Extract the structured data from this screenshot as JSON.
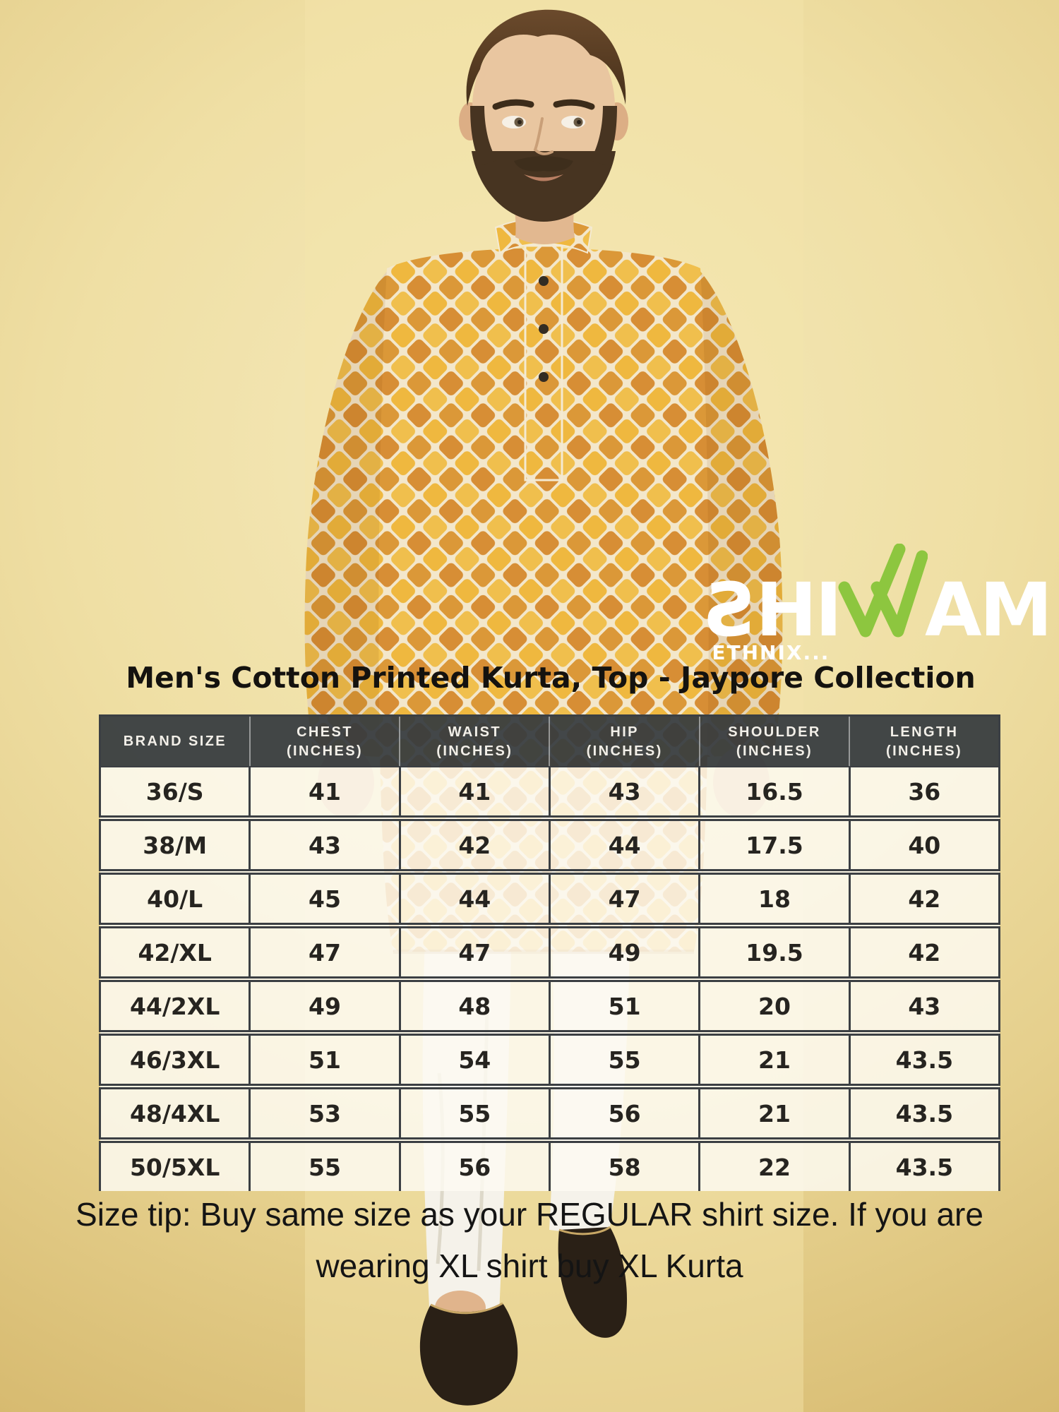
{
  "colors": {
    "bg_center": "#f5e9bc",
    "bg_edge": "#d2b366",
    "accent_green": "#8dc63f",
    "header_bg": "rgba(53,58,62,0.93)",
    "header_text": "#f2efe8",
    "cell_bg": "rgba(253,250,242,0.84)",
    "table_border": "#3b3f43",
    "title_text": "#14120f",
    "tip_text": "#141414",
    "logo_text": "#ffffff"
  },
  "logo": {
    "s": "S",
    "hi": "HI",
    "w": "W",
    "am": "AM",
    "tagline": "ETHNIX...",
    "w_icon": "green-double-check-w-icon"
  },
  "title": "Men's Cotton Printed Kurta, Top - Jaypore Collection",
  "size_chart": {
    "columns": [
      {
        "line1": "BRAND SIZE",
        "line2": ""
      },
      {
        "line1": "CHEST",
        "line2": "(INCHES)"
      },
      {
        "line1": "WAIST",
        "line2": "(INCHES)"
      },
      {
        "line1": "HIP",
        "line2": "(INCHES)"
      },
      {
        "line1": "SHOULDER",
        "line2": "(INCHES)"
      },
      {
        "line1": "LENGTH",
        "line2": "(INCHES)"
      }
    ],
    "rows": [
      [
        "36/S",
        "41",
        "41",
        "43",
        "16.5",
        "36"
      ],
      [
        "38/M",
        "43",
        "42",
        "44",
        "17.5",
        "40"
      ],
      [
        "40/L",
        "45",
        "44",
        "47",
        "18",
        "42"
      ],
      [
        "42/XL",
        "47",
        "47",
        "49",
        "19.5",
        "42"
      ],
      [
        "44/2XL",
        "49",
        "48",
        "51",
        "20",
        "43"
      ],
      [
        "46/3XL",
        "51",
        "54",
        "55",
        "21",
        "43.5"
      ],
      [
        "48/4XL",
        "53",
        "55",
        "56",
        "21",
        "43.5"
      ],
      [
        "50/5XL",
        "55",
        "56",
        "58",
        "22",
        "43.5"
      ]
    ]
  },
  "tip": {
    "lines": [
      "Size tip: Buy same size as your REGULAR shirt size. If you are",
      "wearing XL shirt buy XL Kurta"
    ]
  },
  "model": {
    "photo_name": "man-wearing-yellow-printed-kurta-photo",
    "kurta_yellow": "#efb83f",
    "kurta_yellow2": "#f0bf4d",
    "kurta_orange": "#d78e35",
    "kurta_orange2": "#db9838",
    "pattern_line": "#f3e7cb",
    "pajama": "#f5f2ea",
    "shoe": "#2a2016",
    "shoe_trim": "#c8a765",
    "skin": "#e9c6a0",
    "hair": "#53391f"
  }
}
